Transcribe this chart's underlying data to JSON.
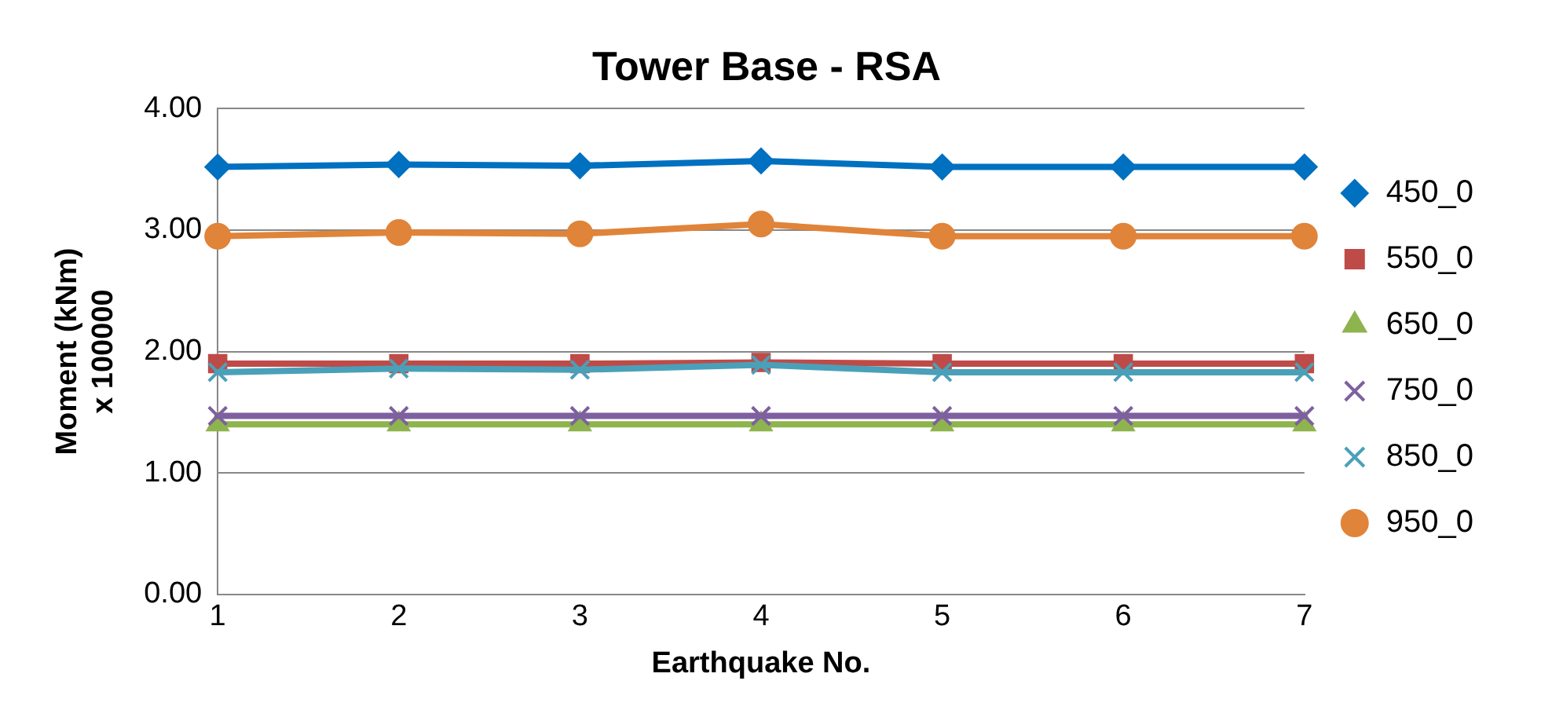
{
  "chart_data": {
    "type": "line",
    "title": "Tower Base - RSA",
    "xlabel": "Earthquake No.",
    "ylabel": "Moment (kNm)",
    "annotations": [
      "x 100000"
    ],
    "categories": [
      "1",
      "2",
      "3",
      "4",
      "5",
      "6",
      "7"
    ],
    "series": [
      {
        "name": "450_0",
        "color": "#0070c0",
        "marker": "diamond",
        "values": [
          3.52,
          3.54,
          3.53,
          3.57,
          3.52,
          3.52,
          3.52
        ]
      },
      {
        "name": "550_0",
        "color": "#be4b48",
        "marker": "square",
        "values": [
          1.9,
          1.9,
          1.9,
          1.91,
          1.9,
          1.9,
          1.9
        ]
      },
      {
        "name": "650_0",
        "color": "#8eb44e",
        "marker": "triangle",
        "values": [
          1.4,
          1.4,
          1.4,
          1.4,
          1.4,
          1.4,
          1.4
        ]
      },
      {
        "name": "750_0",
        "color": "#7e60a0",
        "marker": "cross",
        "values": [
          1.47,
          1.47,
          1.47,
          1.47,
          1.47,
          1.47,
          1.47
        ]
      },
      {
        "name": "850_0",
        "color": "#4aa0b9",
        "marker": "cross",
        "values": [
          1.83,
          1.86,
          1.85,
          1.89,
          1.83,
          1.83,
          1.83
        ]
      },
      {
        "name": "950_0",
        "color": "#e0843a",
        "marker": "circle",
        "values": [
          2.95,
          2.98,
          2.97,
          3.05,
          2.95,
          2.95,
          2.95
        ]
      }
    ],
    "ylim": [
      0,
      4
    ],
    "yticks": [
      {
        "value": 0,
        "label": "0.00"
      },
      {
        "value": 1,
        "label": "1.00"
      },
      {
        "value": 2,
        "label": "2.00"
      },
      {
        "value": 3,
        "label": "3.00"
      },
      {
        "value": 4,
        "label": "4.00"
      }
    ],
    "grid": "y",
    "legend": "right",
    "line_style": "solid"
  }
}
